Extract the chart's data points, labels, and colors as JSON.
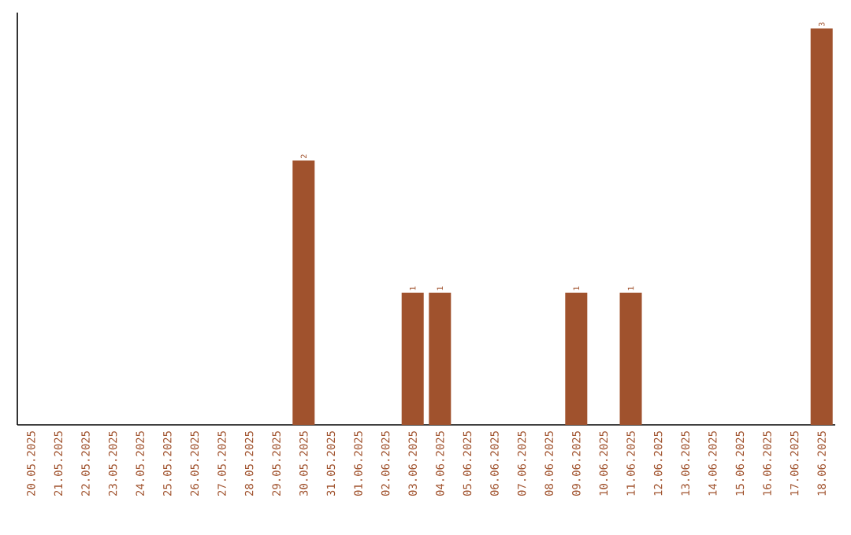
{
  "chart_data": {
    "type": "bar",
    "color": "#a0522d",
    "categories": [
      "20.05.2025",
      "21.05.2025",
      "22.05.2025",
      "23.05.2025",
      "24.05.2025",
      "25.05.2025",
      "26.05.2025",
      "27.05.2025",
      "28.05.2025",
      "29.05.2025",
      "30.05.2025",
      "31.05.2025",
      "01.06.2025",
      "02.06.2025",
      "03.06.2025",
      "04.06.2025",
      "05.06.2025",
      "06.06.2025",
      "07.06.2025",
      "08.06.2025",
      "09.06.2025",
      "10.06.2025",
      "11.06.2025",
      "12.06.2025",
      "13.06.2025",
      "14.06.2025",
      "15.06.2025",
      "16.06.2025",
      "17.06.2025",
      "18.06.2025"
    ],
    "values": [
      0,
      0,
      0,
      0,
      0,
      0,
      0,
      0,
      0,
      0,
      2,
      0,
      0,
      0,
      1,
      1,
      0,
      0,
      0,
      0,
      1,
      0,
      1,
      0,
      0,
      0,
      0,
      0,
      0,
      3
    ],
    "value_labels": [
      null,
      null,
      null,
      null,
      null,
      null,
      null,
      null,
      null,
      null,
      "2",
      null,
      null,
      null,
      "1",
      "1",
      null,
      null,
      null,
      null,
      "1",
      null,
      "1",
      null,
      null,
      null,
      null,
      null,
      null,
      "3"
    ],
    "tick_labels": "x"
  }
}
